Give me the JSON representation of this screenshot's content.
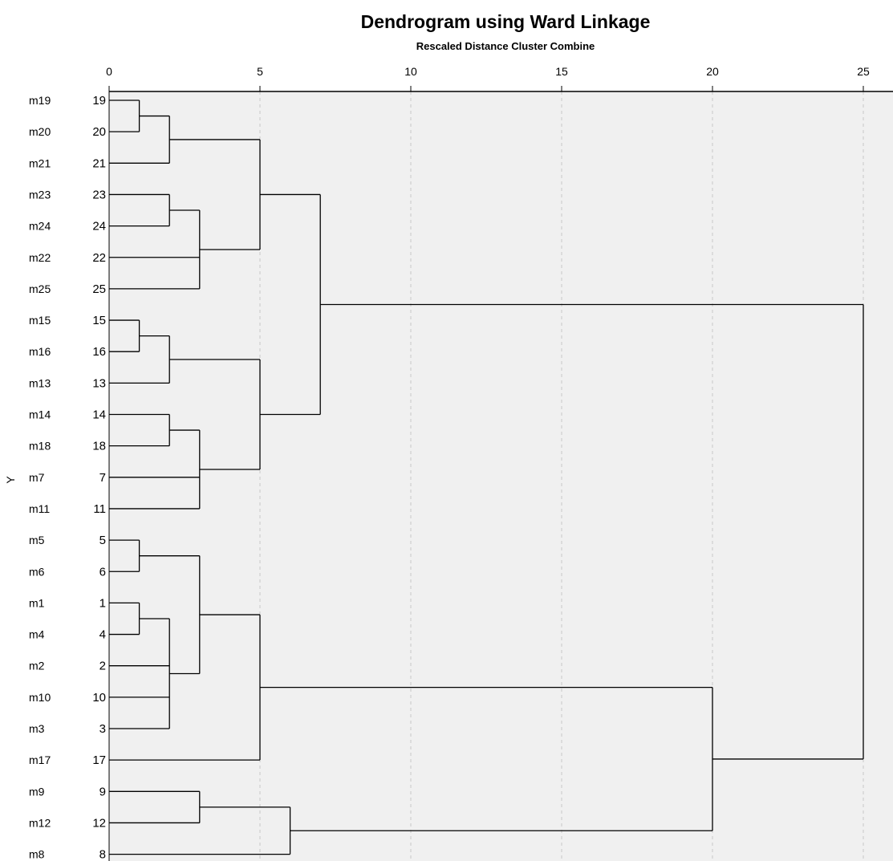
{
  "chart_data": {
    "type": "dendrogram",
    "title": "Dendrogram using Ward Linkage",
    "subtitle": "Rescaled Distance Cluster Combine",
    "ylabel": "Y",
    "xlim": [
      0,
      25
    ],
    "xticks": [
      0,
      5,
      10,
      15,
      20,
      25
    ],
    "grid": true,
    "leaves": [
      {
        "label": "m19",
        "case": "19"
      },
      {
        "label": "m20",
        "case": "20"
      },
      {
        "label": "m21",
        "case": "21"
      },
      {
        "label": "m23",
        "case": "23"
      },
      {
        "label": "m24",
        "case": "24"
      },
      {
        "label": "m22",
        "case": "22"
      },
      {
        "label": "m25",
        "case": "25"
      },
      {
        "label": "m15",
        "case": "15"
      },
      {
        "label": "m16",
        "case": "16"
      },
      {
        "label": "m13",
        "case": "13"
      },
      {
        "label": "m14",
        "case": "14"
      },
      {
        "label": "m18",
        "case": "18"
      },
      {
        "label": "m7",
        "case": "7"
      },
      {
        "label": "m11",
        "case": "11"
      },
      {
        "label": "m5",
        "case": "5"
      },
      {
        "label": "m6",
        "case": "6"
      },
      {
        "label": "m1",
        "case": "1"
      },
      {
        "label": "m4",
        "case": "4"
      },
      {
        "label": "m2",
        "case": "2"
      },
      {
        "label": "m10",
        "case": "10"
      },
      {
        "label": "m3",
        "case": "3"
      },
      {
        "label": "m17",
        "case": "17"
      },
      {
        "label": "m9",
        "case": "9"
      },
      {
        "label": "m12",
        "case": "12"
      },
      {
        "label": "m8",
        "case": "8"
      }
    ],
    "merges": [
      {
        "id": "A",
        "children": [
          "L0",
          "L1"
        ],
        "height": 1
      },
      {
        "id": "B",
        "children": [
          "A",
          "L2"
        ],
        "height": 2
      },
      {
        "id": "C",
        "children": [
          "L3",
          "L4"
        ],
        "height": 2
      },
      {
        "id": "D",
        "children": [
          "C",
          "L5",
          "L6"
        ],
        "height": 3
      },
      {
        "id": "E",
        "children": [
          "B",
          "D"
        ],
        "height": 5
      },
      {
        "id": "F",
        "children": [
          "L7",
          "L8"
        ],
        "height": 1
      },
      {
        "id": "G",
        "children": [
          "F",
          "L9"
        ],
        "height": 2
      },
      {
        "id": "H",
        "children": [
          "L10",
          "L11"
        ],
        "height": 2
      },
      {
        "id": "I",
        "children": [
          "H",
          "L12",
          "L13"
        ],
        "height": 3
      },
      {
        "id": "J",
        "children": [
          "G",
          "I"
        ],
        "height": 5
      },
      {
        "id": "K",
        "children": [
          "E",
          "J"
        ],
        "height": 7
      },
      {
        "id": "M",
        "children": [
          "L14",
          "L15"
        ],
        "height": 1
      },
      {
        "id": "N",
        "children": [
          "L16",
          "L17"
        ],
        "height": 1
      },
      {
        "id": "O",
        "children": [
          "N",
          "L18",
          "L19",
          "L20"
        ],
        "height": 2
      },
      {
        "id": "P",
        "children": [
          "M",
          "O"
        ],
        "height": 3
      },
      {
        "id": "Q",
        "children": [
          "P",
          "L21"
        ],
        "height": 5
      },
      {
        "id": "R",
        "children": [
          "L22",
          "L23"
        ],
        "height": 3
      },
      {
        "id": "S",
        "children": [
          "R",
          "L24"
        ],
        "height": 6
      },
      {
        "id": "T",
        "children": [
          "Q",
          "S"
        ],
        "height": 20
      },
      {
        "id": "U",
        "children": [
          "K",
          "T"
        ],
        "height": 25
      }
    ],
    "colors": {
      "plot_bg": "#f0f0f0",
      "grid": "#c8c8c8",
      "line": "#000000"
    }
  }
}
